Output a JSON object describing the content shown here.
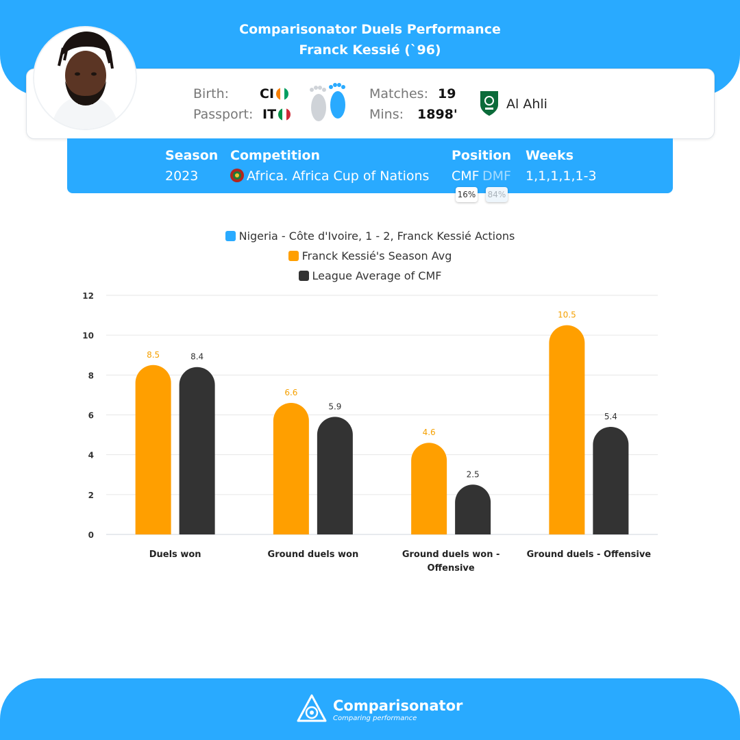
{
  "header": {
    "title": "Comparisonator Duels Performance",
    "subtitle": "Franck Kessié (`96)"
  },
  "player": {
    "birth_label": "Birth:",
    "birth_value": "CI",
    "passport_label": "Passport:",
    "passport_value": "IT",
    "matches_label": "Matches:",
    "matches_value": "19",
    "mins_label": "Mins:",
    "mins_value": "1898'",
    "club": "Al Ahli"
  },
  "season": {
    "season_label": "Season",
    "season_value": "2023",
    "competition_label": "Competition",
    "competition_value": "Africa. Africa Cup of Nations",
    "position_label": "Position",
    "position_primary": "CMF",
    "position_secondary": "DMF",
    "position_primary_pct": "16%",
    "position_secondary_pct": "84%",
    "weeks_label": "Weeks",
    "weeks_value": "1,1,1,1,1-3"
  },
  "legend": [
    {
      "label": "Nigeria - Côte d'Ivoire, 1 - 2, Franck Kessié Actions",
      "color": "#29aaff"
    },
    {
      "label": "Franck Kessié's Season Avg",
      "color": "#ff9f00"
    },
    {
      "label": "League Average of CMF",
      "color": "#333333"
    }
  ],
  "chart_data": {
    "type": "bar",
    "categories": [
      "Duels won",
      "Ground duels won",
      "Ground duels won - Offensive",
      "Ground duels - Offensive"
    ],
    "series": [
      {
        "name": "Franck Kessié's Season Avg",
        "color": "#ff9f00",
        "values": [
          8.5,
          6.6,
          4.6,
          10.5
        ]
      },
      {
        "name": "League Average of CMF",
        "color": "#333333",
        "values": [
          8.4,
          5.9,
          2.5,
          5.4
        ]
      }
    ],
    "ylim": [
      0,
      12
    ],
    "yticks": [
      0,
      2,
      4,
      6,
      8,
      10,
      12
    ],
    "grid": true
  },
  "footer": {
    "brand": "Comparisonator",
    "tagline": "Comparing performance"
  }
}
